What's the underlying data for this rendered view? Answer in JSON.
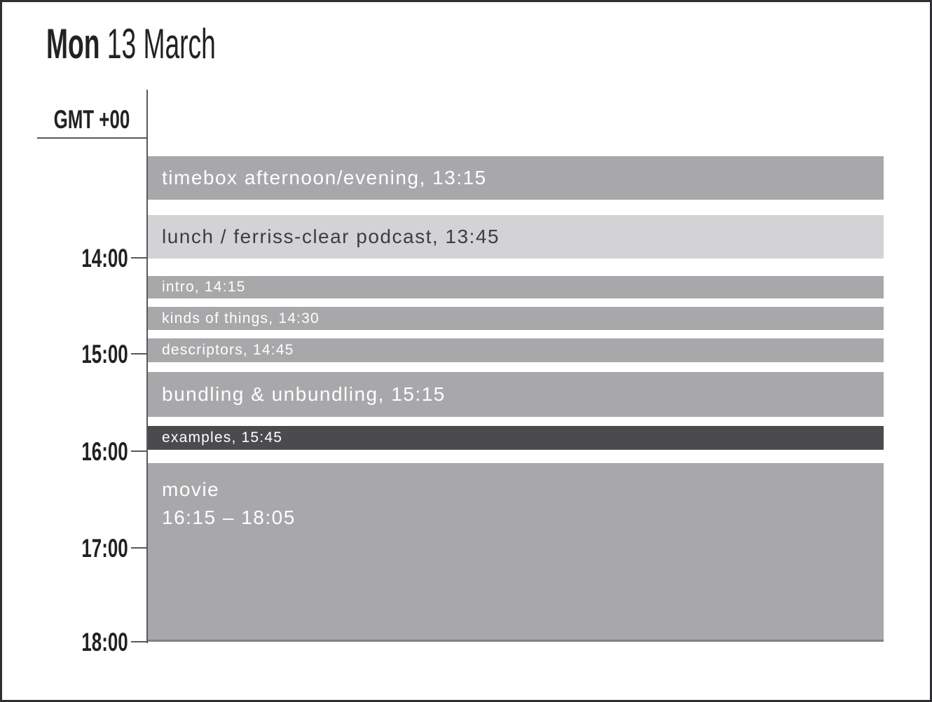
{
  "header": {
    "day": "Mon",
    "date": "13 March"
  },
  "timezone": {
    "label": "GMT +00"
  },
  "timeline": {
    "tick_labels": [
      "14:00",
      "15:00",
      "16:00",
      "17:00",
      "18:00"
    ]
  },
  "events": [
    {
      "lines": [
        "timebox afternoon/evening, 13:15"
      ],
      "variant": "gray",
      "size": "large"
    },
    {
      "lines": [
        "lunch / ferriss-clear podcast, 13:45"
      ],
      "variant": "light",
      "size": "large"
    },
    {
      "lines": [
        "intro, 14:15"
      ],
      "variant": "gray",
      "size": "small"
    },
    {
      "lines": [
        "kinds of things, 14:30"
      ],
      "variant": "gray",
      "size": "small"
    },
    {
      "lines": [
        "descriptors, 14:45"
      ],
      "variant": "gray",
      "size": "small"
    },
    {
      "lines": [
        "bundling & unbundling, 15:15"
      ],
      "variant": "gray",
      "size": "large"
    },
    {
      "lines": [
        "examples, 15:45"
      ],
      "variant": "dark",
      "size": "small"
    },
    {
      "lines": [
        "movie",
        "16:15 – 18:05"
      ],
      "variant": "gray",
      "size": "large"
    }
  ],
  "colors": {
    "event_gray": "#a8a8ab",
    "event_light": "#d3d3d5",
    "event_dark": "#4b4b4e",
    "text_on_gray": "#ffffff",
    "text_on_light": "#3e3e41",
    "axis": "#58585b",
    "title_text": "#232124"
  }
}
